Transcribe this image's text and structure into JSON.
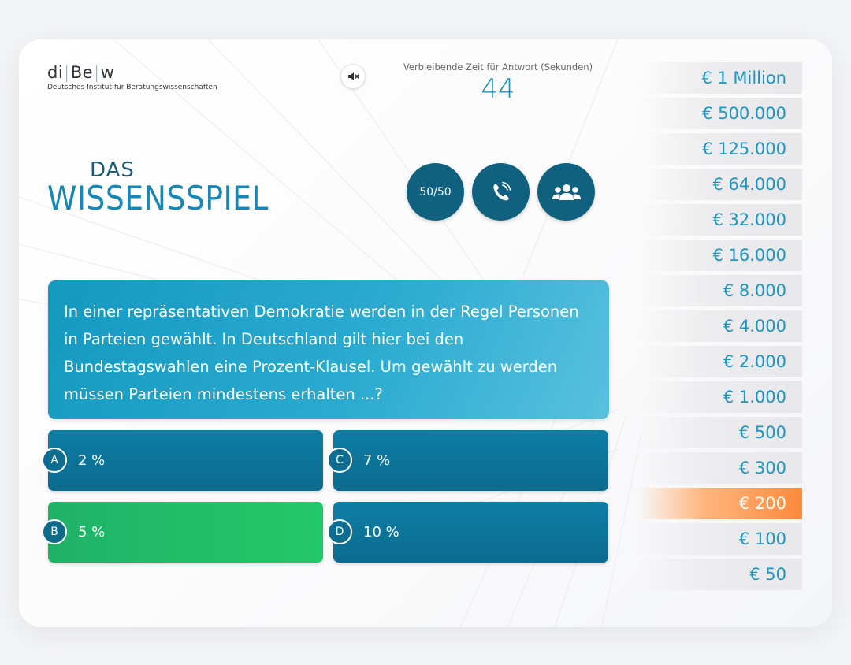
{
  "logo": {
    "parts": [
      "di",
      "Be",
      "w"
    ],
    "subtitle": "Deutsches Institut für Beratungswissenschaften"
  },
  "timer": {
    "label": "Verbleibende Zeit für Antwort (Sekunden)",
    "value": "44"
  },
  "title": {
    "small": "DAS",
    "main": "WISSENSSPIEL"
  },
  "jokers": {
    "fifty_fifty_label": "50/50",
    "phone_icon": "phone-icon",
    "audience_icon": "audience-icon"
  },
  "question": {
    "text": "In einer repräsentativen Demokratie werden in der Regel Personen in Parteien gewählt. In Deutschland gilt hier bei den Bundestagswahlen eine Prozent-Klausel. Um gewählt zu werden müssen Parteien mindestens erhalten ...?"
  },
  "answers": [
    {
      "letter": "A",
      "text": "2 %"
    },
    {
      "letter": "B",
      "text": "5 %",
      "state": "correct"
    },
    {
      "letter": "C",
      "text": "7 %"
    },
    {
      "letter": "D",
      "text": "10 %"
    }
  ],
  "ladder": [
    "€ 1 Million",
    "€ 500.000",
    "€ 125.000",
    "€ 64.000",
    "€ 32.000",
    "€ 16.000",
    "€ 8.000",
    "€ 4.000",
    "€ 2.000",
    "€ 1.000",
    "€ 500",
    "€ 300",
    "€ 200",
    "€ 100",
    "€ 50"
  ],
  "ladder_current": "€ 200",
  "colors": {
    "primary": "#10617f",
    "accent": "#1d95c2",
    "correct": "#23c86a",
    "current": "#ff8a3a"
  }
}
